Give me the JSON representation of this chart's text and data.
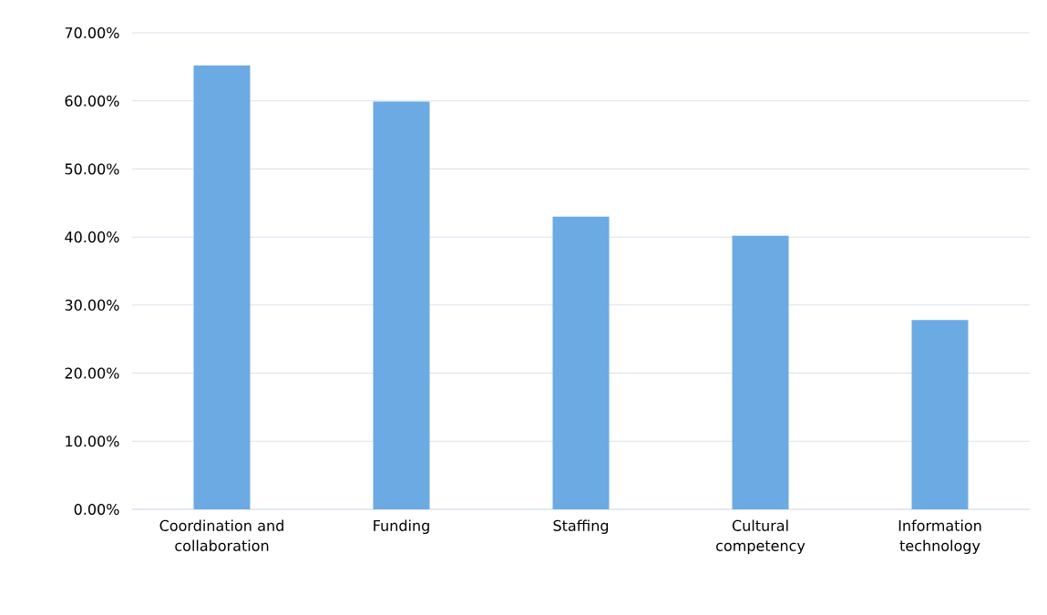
{
  "chart_data": {
    "type": "bar",
    "categories": [
      "Coordination and collaboration",
      "Funding",
      "Staffing",
      "Cultural competency",
      "Information technology"
    ],
    "values": [
      65.2,
      59.9,
      43.0,
      40.2,
      27.8
    ],
    "color": "#6caae3",
    "ylim": [
      0,
      70
    ],
    "yticks": [
      {
        "value": 0,
        "label": "0.00%"
      },
      {
        "value": 10,
        "label": "10.00%"
      },
      {
        "value": 20,
        "label": "20.00%"
      },
      {
        "value": 30,
        "label": "30.00%"
      },
      {
        "value": 40,
        "label": "40.00%"
      },
      {
        "value": 50,
        "label": "50.00%"
      },
      {
        "value": 60,
        "label": "60.00%"
      },
      {
        "value": 70,
        "label": "70.00%"
      }
    ],
    "grid": "y"
  }
}
